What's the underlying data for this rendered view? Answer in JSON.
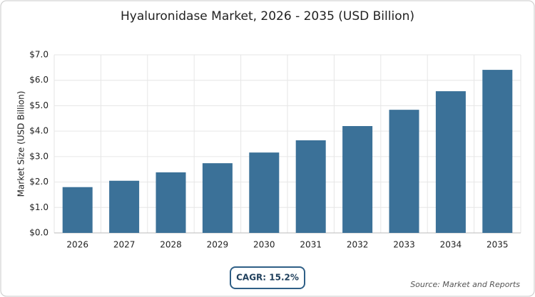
{
  "chart_data": {
    "type": "bar",
    "title": "Hyaluronidase Market, 2026 - 2035 (USD Billion)",
    "y_label": "Market Size (USD Billion)",
    "categories": [
      "2026",
      "2027",
      "2028",
      "2029",
      "2030",
      "2031",
      "2032",
      "2033",
      "2034",
      "2035"
    ],
    "values": [
      1.8,
      2.05,
      2.38,
      2.74,
      3.16,
      3.64,
      4.2,
      4.84,
      5.57,
      6.41
    ],
    "color": "#3b7198",
    "ylim": [
      0,
      7
    ],
    "yticks": [
      {
        "value": 0,
        "label": "$0.0"
      },
      {
        "value": 1,
        "label": "$1.0"
      },
      {
        "value": 2,
        "label": "$2.0"
      },
      {
        "value": 3,
        "label": "$3.0"
      },
      {
        "value": 4,
        "label": "$4.0"
      },
      {
        "value": 5,
        "label": "$5.0"
      },
      {
        "value": 6,
        "label": "$6.0"
      },
      {
        "value": 7,
        "label": "$7.0"
      }
    ],
    "grid": true,
    "cagr": "CAGR: 15.2%",
    "source": "Source: Market and Reports"
  }
}
